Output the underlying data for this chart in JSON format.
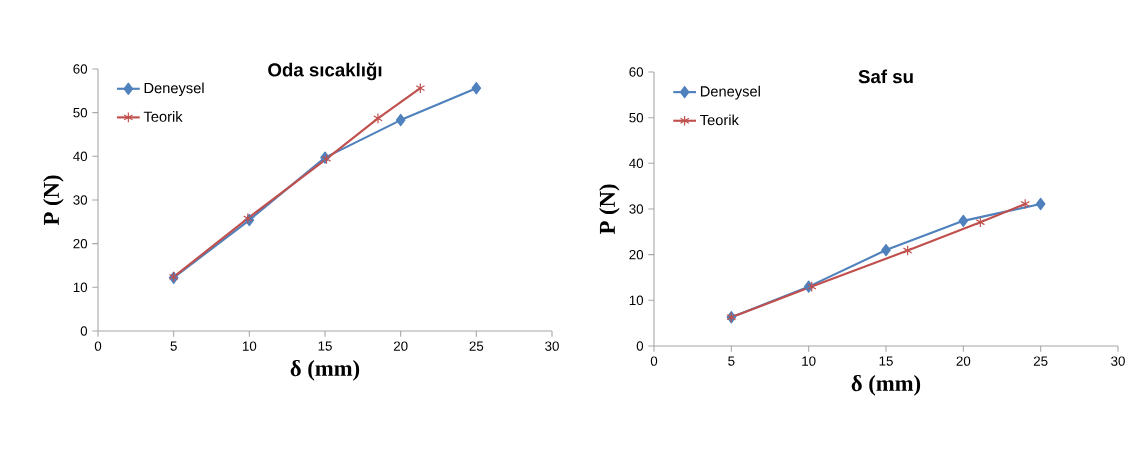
{
  "chart_data": [
    {
      "type": "line",
      "title": "Oda sıcaklığı",
      "xlabel": "δ (mm)",
      "ylabel": "P (N)",
      "xlim": [
        0,
        30
      ],
      "xticks": [
        0,
        5,
        10,
        15,
        20,
        25,
        30
      ],
      "ylim": [
        0,
        60
      ],
      "yticks": [
        0,
        10,
        20,
        30,
        40,
        50,
        60
      ],
      "grid": false,
      "legend": "top left",
      "series": [
        {
          "name": "Deneysel",
          "color": "#4f81bd",
          "marker": "diamond",
          "x": [
            5,
            10,
            15,
            20,
            25
          ],
          "values": [
            12.2,
            25.4,
            39.7,
            48.3,
            55.6
          ]
        },
        {
          "name": "Teorik",
          "color": "#c0504d",
          "marker": "cross",
          "x": [
            5,
            9.9,
            15.1,
            18.5,
            21.3
          ],
          "values": [
            12.4,
            25.8,
            39.4,
            48.7,
            55.6
          ]
        }
      ]
    },
    {
      "type": "line",
      "title": "Saf su",
      "xlabel": "δ (mm)",
      "ylabel": "P (N)",
      "xlim": [
        0,
        30
      ],
      "xticks": [
        0,
        5,
        10,
        15,
        20,
        25,
        30
      ],
      "ylim": [
        0,
        60
      ],
      "yticks": [
        0,
        10,
        20,
        30,
        40,
        50,
        60
      ],
      "grid": false,
      "legend": "top left",
      "series": [
        {
          "name": "Deneysel",
          "color": "#4f81bd",
          "marker": "diamond",
          "x": [
            5,
            10,
            15,
            20,
            25
          ],
          "values": [
            6.3,
            13.0,
            21.0,
            27.4,
            31.1
          ]
        },
        {
          "name": "Teorik",
          "color": "#c0504d",
          "marker": "cross",
          "x": [
            5,
            10.2,
            16.4,
            21.1,
            24.0
          ],
          "values": [
            6.3,
            13.0,
            20.9,
            27.1,
            31.1
          ]
        }
      ]
    }
  ]
}
